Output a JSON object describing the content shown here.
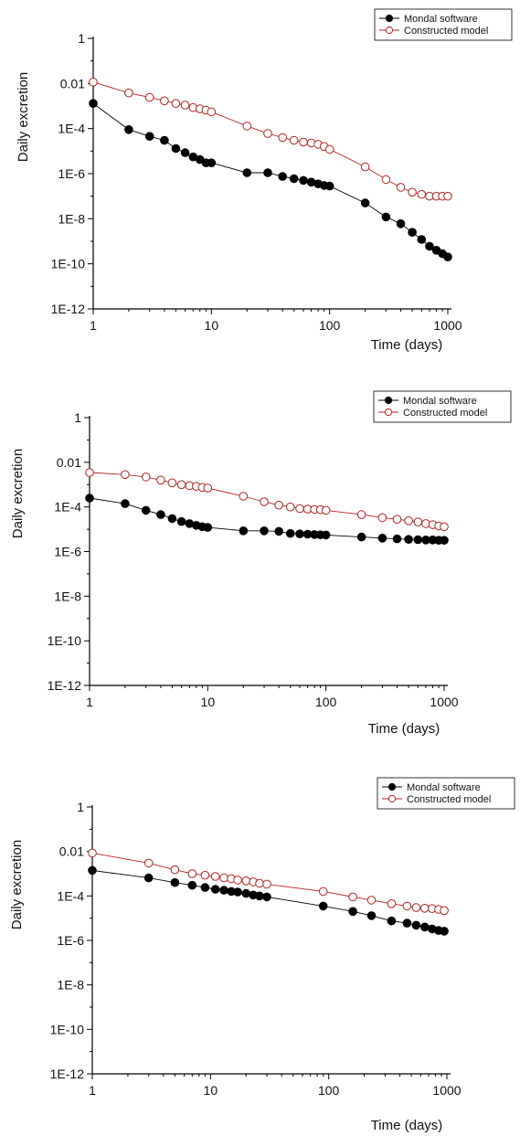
{
  "chart_data": [
    {
      "type": "line",
      "xscale": "log",
      "yscale": "log",
      "xlabel": "Time (days)",
      "ylabel": "Daily excretion",
      "xlim": [
        1,
        1000
      ],
      "ylim": [
        1e-12,
        1
      ],
      "xticks": [
        1,
        10,
        100,
        1000
      ],
      "xtick_labels": [
        "1",
        "10",
        "100",
        "1000"
      ],
      "yticks": [
        1,
        0.01,
        0.0001,
        1e-06,
        1e-08,
        1e-10,
        1e-12
      ],
      "ytick_labels": [
        "1",
        "0.01",
        "1E-4",
        "1E-6",
        "1E-8",
        "1E-10",
        "1E-12"
      ],
      "grid": false,
      "legend_position": "top-right",
      "series": [
        {
          "name": "Mondal software",
          "marker": "filled-circle",
          "color": "#000000",
          "x": [
            1,
            2,
            3,
            4,
            5,
            6,
            7,
            8,
            9,
            10,
            20,
            30,
            40,
            50,
            60,
            70,
            80,
            90,
            100,
            200,
            300,
            400,
            500,
            600,
            700,
            800,
            900,
            1000
          ],
          "y": [
            0.0013,
            9e-05,
            4.5e-05,
            3e-05,
            1.3e-05,
            8.5e-06,
            5.5e-06,
            4.2e-06,
            3e-06,
            3e-06,
            1.1e-06,
            1.1e-06,
            7.5e-07,
            6e-07,
            5e-07,
            4.2e-07,
            3.5e-07,
            3e-07,
            2.8e-07,
            5e-08,
            1.2e-08,
            6e-09,
            2.5e-09,
            1.2e-09,
            6e-10,
            4e-10,
            2.8e-10,
            2e-10
          ]
        },
        {
          "name": "Constructed model",
          "marker": "open-circle",
          "color": "#b22222",
          "x": [
            1,
            2,
            3,
            4,
            5,
            6,
            7,
            8,
            9,
            10,
            20,
            30,
            40,
            50,
            60,
            70,
            80,
            90,
            100,
            200,
            300,
            400,
            500,
            600,
            700,
            800,
            900,
            1000
          ],
          "y": [
            0.0115,
            0.0038,
            0.0024,
            0.0017,
            0.0013,
            0.0011,
            0.00085,
            0.00075,
            0.00065,
            0.00055,
            0.00013,
            6e-05,
            4e-05,
            3e-05,
            2.5e-05,
            2.3e-05,
            2e-05,
            1.6e-05,
            1.2e-05,
            2e-06,
            5.5e-07,
            2.5e-07,
            1.5e-07,
            1.2e-07,
            1e-07,
            1e-07,
            1e-07,
            1e-07
          ]
        }
      ]
    },
    {
      "type": "line",
      "xscale": "log",
      "yscale": "log",
      "xlabel": "Time (days)",
      "ylabel": "Daily excretion",
      "xlim": [
        1,
        1000
      ],
      "ylim": [
        1e-12,
        1
      ],
      "xticks": [
        1,
        10,
        100,
        1000
      ],
      "xtick_labels": [
        "1",
        "10",
        "100",
        "1000"
      ],
      "yticks": [
        1,
        0.01,
        0.0001,
        1e-06,
        1e-08,
        1e-10,
        1e-12
      ],
      "ytick_labels": [
        "1",
        "0.01",
        "1E-4",
        "1E-6",
        "1E-8",
        "1E-10",
        "1E-12"
      ],
      "grid": false,
      "legend_position": "top-right",
      "series": [
        {
          "name": "Mondal software",
          "marker": "filled-circle",
          "color": "#000000",
          "x": [
            1,
            2,
            3,
            4,
            5,
            6,
            7,
            8,
            9,
            10,
            20,
            30,
            40,
            50,
            60,
            70,
            80,
            90,
            100,
            200,
            300,
            400,
            500,
            600,
            700,
            800,
            900,
            1000
          ],
          "y": [
            0.00025,
            0.00014,
            7e-05,
            4.5e-05,
            3e-05,
            2.2e-05,
            1.8e-05,
            1.5e-05,
            1.3e-05,
            1.2e-05,
            8.5e-06,
            8.5e-06,
            8e-06,
            6.5e-06,
            6.2e-06,
            6e-06,
            5.8e-06,
            5.6e-06,
            5.5e-06,
            4.5e-06,
            4e-06,
            3.7e-06,
            3.5e-06,
            3.4e-06,
            3.3e-06,
            3.3e-06,
            3.2e-06,
            3.2e-06
          ]
        },
        {
          "name": "Constructed model",
          "marker": "open-circle",
          "color": "#b22222",
          "x": [
            1,
            2,
            3,
            4,
            5,
            6,
            7,
            8,
            9,
            10,
            20,
            30,
            40,
            50,
            60,
            70,
            80,
            90,
            100,
            200,
            300,
            400,
            500,
            600,
            700,
            800,
            900,
            1000
          ],
          "y": [
            0.0035,
            0.0028,
            0.0022,
            0.0016,
            0.0012,
            0.001,
            0.0009,
            0.00083,
            0.00075,
            0.0007,
            0.0003,
            0.00017,
            0.00012,
            0.0001,
            8.5e-05,
            8e-05,
            7.7e-05,
            7.5e-05,
            7e-05,
            4.5e-05,
            3.3e-05,
            2.8e-05,
            2.4e-05,
            2.1e-05,
            1.8e-05,
            1.6e-05,
            1.4e-05,
            1.3e-05
          ]
        }
      ]
    },
    {
      "type": "line",
      "xscale": "log",
      "yscale": "log",
      "xlabel": "Time (days)",
      "ylabel": "Daily excretion",
      "xlim": [
        1,
        1000
      ],
      "ylim": [
        1e-12,
        1
      ],
      "xticks": [
        1,
        10,
        100,
        1000
      ],
      "xtick_labels": [
        "1",
        "10",
        "100",
        "1000"
      ],
      "yticks": [
        1,
        0.01,
        0.0001,
        1e-06,
        1e-08,
        1e-10,
        1e-12
      ],
      "ytick_labels": [
        "1",
        "0.01",
        "1E-4",
        "1E-6",
        "1E-8",
        "1E-10",
        "1E-12"
      ],
      "grid": false,
      "legend_position": "top-right",
      "series": [
        {
          "name": "Mondal software",
          "marker": "filled-circle",
          "color": "#000000",
          "x": [
            1,
            3,
            5,
            7,
            9,
            11,
            13,
            15,
            17,
            20,
            23,
            26,
            30,
            90,
            160,
            230,
            340,
            460,
            550,
            650,
            750,
            850,
            950
          ],
          "y": [
            0.0014,
            0.00065,
            0.0004,
            0.0003,
            0.00024,
            0.0002,
            0.00018,
            0.00016,
            0.00015,
            0.00013,
            0.00011,
            0.0001,
            9e-05,
            3.5e-05,
            2e-05,
            1.3e-05,
            7.5e-06,
            6e-06,
            4.8e-06,
            4e-06,
            3.3e-06,
            2.8e-06,
            2.6e-06
          ]
        },
        {
          "name": "Constructed model",
          "marker": "open-circle",
          "color": "#b22222",
          "x": [
            1,
            3,
            5,
            7,
            9,
            11,
            13,
            15,
            17,
            20,
            23,
            26,
            30,
            90,
            160,
            230,
            340,
            460,
            550,
            650,
            750,
            850,
            950
          ],
          "y": [
            0.0085,
            0.003,
            0.0015,
            0.001,
            0.00085,
            0.00075,
            0.00065,
            0.0006,
            0.00052,
            0.00048,
            0.00043,
            0.00037,
            0.00034,
            0.00016,
            9e-05,
            6.5e-05,
            4.5e-05,
            3.5e-05,
            3e-05,
            2.8e-05,
            2.7e-05,
            2.5e-05,
            2.2e-05
          ]
        }
      ]
    }
  ]
}
